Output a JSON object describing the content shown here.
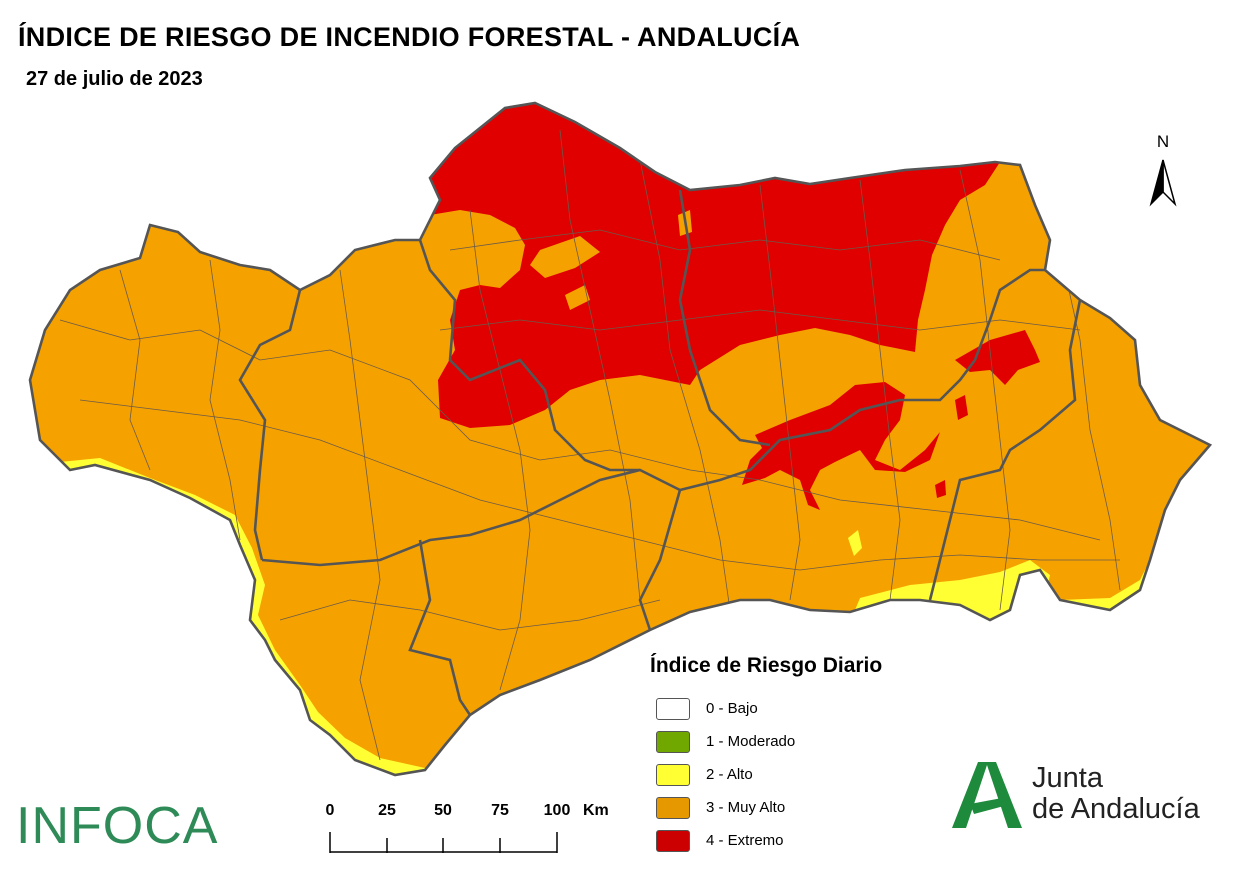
{
  "title": "ÍNDICE DE RIESGO DE INCENDIO FORESTAL - ANDALUCÍA",
  "subtitle": "27 de julio de 2023",
  "north_arrow": {
    "label": "N"
  },
  "scale_bar": {
    "ticks": [
      "0",
      "25",
      "50",
      "75",
      "100"
    ],
    "unit": "Km"
  },
  "legend": {
    "title": "Índice de Riesgo Diario",
    "items": [
      {
        "label": "0 - Bajo",
        "color": "#ffffff"
      },
      {
        "label": "1 - Moderado",
        "color": "#70a800"
      },
      {
        "label": "2 - Alto",
        "color": "#ffff33"
      },
      {
        "label": "3 - Muy Alto",
        "color": "#e69800"
      },
      {
        "label": "4 - Extremo",
        "color": "#cc0000"
      }
    ]
  },
  "logos": {
    "infoca": "INFOCA",
    "junta_line1": "Junta",
    "junta_line2": "de Andalucía"
  },
  "colors": {
    "muy_alto": "#f5a200",
    "extremo": "#e00000",
    "alto": "#ffff33",
    "boundary": "#555555",
    "infoca": "#2e8b57",
    "junta": "#1e8a3c"
  }
}
